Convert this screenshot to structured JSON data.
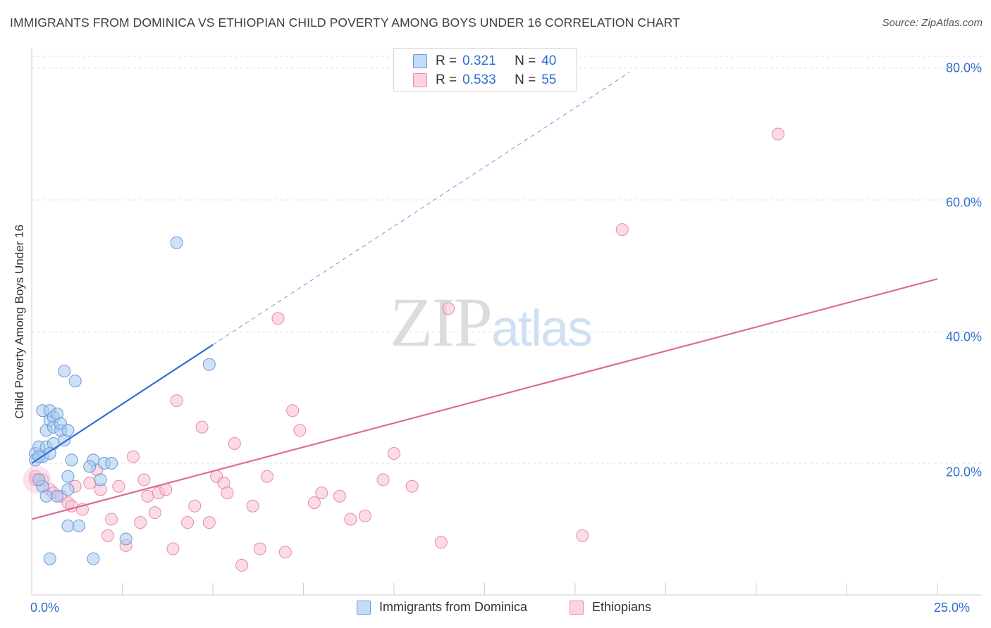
{
  "title": "IMMIGRANTS FROM DOMINICA VS ETHIOPIAN CHILD POVERTY AMONG BOYS UNDER 16 CORRELATION CHART",
  "source": "Source: ZipAtlas.com",
  "watermark": {
    "zip": "ZIP",
    "atlas": "atlas"
  },
  "legend": {
    "rows": [
      {
        "r_label": "R =",
        "r_value": "0.321",
        "n_label": "N =",
        "n_value": "40",
        "color": "#a8c8f0",
        "border": "#6a9ad8"
      },
      {
        "r_label": "R =",
        "r_value": "0.533",
        "n_label": "N =",
        "n_value": "55",
        "color": "#f8bfd2",
        "border": "#e88aaa"
      }
    ]
  },
  "bottom_legend": [
    {
      "label": "Immigrants from Dominica",
      "color": "#c5daf5",
      "border": "#6a9ad8"
    },
    {
      "label": "Ethiopians",
      "color": "#fbd3e1",
      "border": "#e88aaa"
    }
  ],
  "axes": {
    "ylabel": "Child Poverty Among Boys Under 16",
    "y_ticks": [
      "80.0%",
      "60.0%",
      "40.0%",
      "20.0%"
    ],
    "x_ticks": [
      "0.0%",
      "25.0%"
    ]
  },
  "chart_data": {
    "type": "scatter",
    "title": "IMMIGRANTS FROM DOMINICA VS ETHIOPIAN CHILD POVERTY AMONG BOYS UNDER 16 CORRELATION CHART",
    "xlabel": "",
    "ylabel": "Child Poverty Among Boys Under 16",
    "xlim": [
      0,
      25
    ],
    "ylim": [
      0,
      82
    ],
    "grid": true,
    "legend_position": "top-center",
    "colors": {
      "dominica": "#2f6fd0",
      "ethiopians": "#e06a95"
    },
    "series": [
      {
        "name": "Immigrants from Dominica",
        "color": "#a8c8f0",
        "stroke": "#6a9ad8",
        "x": [
          0.1,
          0.2,
          0.3,
          0.4,
          0.5,
          0.4,
          0.3,
          0.5,
          0.6,
          0.7,
          0.6,
          0.6,
          0.8,
          0.9,
          0.8,
          1.0,
          0.9,
          0.5,
          1.1,
          1.0,
          1.7,
          2.0,
          1.6,
          1.9,
          1.0,
          2.2,
          0.7,
          1.0,
          4.9,
          0.3,
          0.5,
          0.1,
          0.2,
          0.4,
          1.3,
          1.7,
          2.6,
          4.0,
          1.2,
          0.2
        ],
        "y": [
          21.5,
          22.5,
          21.0,
          22.5,
          26.5,
          25.0,
          28.0,
          28.0,
          27.0,
          27.5,
          25.5,
          23.0,
          25.0,
          23.5,
          26.0,
          25.0,
          34.0,
          21.5,
          20.5,
          18.0,
          20.5,
          20.0,
          19.5,
          17.5,
          16.0,
          20.0,
          15.0,
          10.5,
          35.0,
          16.5,
          5.5,
          20.5,
          17.5,
          15.0,
          10.5,
          5.5,
          8.5,
          53.5,
          32.5,
          21.0
        ]
      },
      {
        "name": "Ethiopians",
        "color": "#f8bfd2",
        "stroke": "#e88aaa",
        "x": [
          0.1,
          0.3,
          0.5,
          0.6,
          0.8,
          1.0,
          1.1,
          1.2,
          1.4,
          1.6,
          1.8,
          1.9,
          2.1,
          2.2,
          2.4,
          2.6,
          2.8,
          3.0,
          3.1,
          3.2,
          3.4,
          3.5,
          3.7,
          3.9,
          4.0,
          4.3,
          4.5,
          4.7,
          4.9,
          5.1,
          5.3,
          5.4,
          5.6,
          5.8,
          6.1,
          6.3,
          6.5,
          6.8,
          7.0,
          7.2,
          7.4,
          7.8,
          8.0,
          8.5,
          8.8,
          9.2,
          9.7,
          10.0,
          10.5,
          11.3,
          11.5,
          15.2,
          16.3,
          20.6,
          0.1
        ],
        "y": [
          18.0,
          17.5,
          16.0,
          15.5,
          15.0,
          14.0,
          13.5,
          16.5,
          13.0,
          17.0,
          19.0,
          16.0,
          9.0,
          11.5,
          16.5,
          7.5,
          21.0,
          11.0,
          17.5,
          15.0,
          12.5,
          15.5,
          16.0,
          7.0,
          29.5,
          11.0,
          13.5,
          25.5,
          11.0,
          18.0,
          17.0,
          15.5,
          23.0,
          4.5,
          13.5,
          7.0,
          18.0,
          42.0,
          6.5,
          28.0,
          25.0,
          14.0,
          15.5,
          15.0,
          11.5,
          12.0,
          17.5,
          21.5,
          16.5,
          8.0,
          43.5,
          9.0,
          55.5,
          70.0,
          17.5
        ]
      }
    ],
    "trendlines": [
      {
        "series": "Immigrants from Dominica",
        "x": [
          0,
          5.0
        ],
        "y": [
          20.0,
          38.0
        ],
        "dashed_extension_to_x": 16.5
      },
      {
        "series": "Ethiopians",
        "x": [
          0,
          25.0
        ],
        "y": [
          11.5,
          48.0
        ]
      }
    ]
  }
}
